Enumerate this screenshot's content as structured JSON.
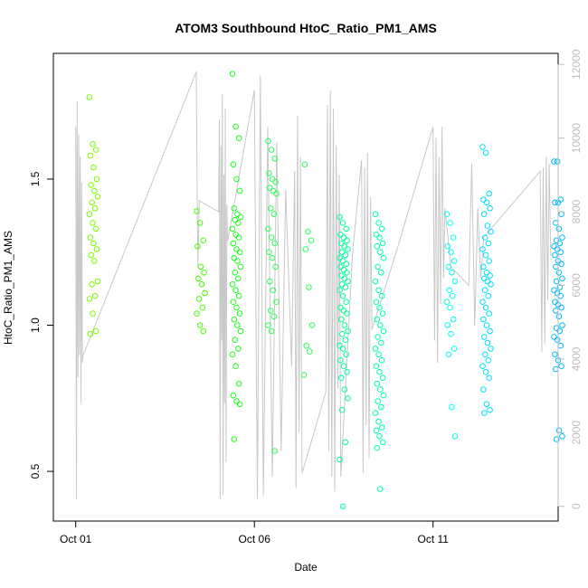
{
  "chart_data": {
    "type": "scatter",
    "title": "ATOM3 Southbound HtoC_Ratio_PM1_AMS",
    "xlabel": "Date",
    "ylabel": "HtoC_Ratio_PM1_AMS",
    "x_ticks": [
      "Oct 01",
      "Oct 06",
      "Oct 11"
    ],
    "y_ticks": [
      0.5,
      1.0,
      1.5
    ],
    "y_tick_labels": [
      "0.5",
      "1.0",
      "1.5"
    ],
    "y2_ticks": [
      0,
      2000,
      4000,
      6000,
      8000,
      10000,
      12000
    ],
    "y2_tick_labels": [
      "0",
      "2000",
      "4000",
      "6000",
      "8000",
      "10000",
      "12000"
    ],
    "xlim": [
      "2016-09-30T09:00",
      "2016-10-14T12:00"
    ],
    "ylim": [
      0.33,
      1.93
    ],
    "y2lim": [
      -400,
      12300
    ],
    "secondary_axis_color": "#bdbdbd",
    "grid": false,
    "series": [
      {
        "color": "#7cfc00",
        "x": [
          "2016-10-01",
          "2016-10-01",
          "2016-10-01",
          "2016-10-01",
          "2016-10-01",
          "2016-10-01",
          "2016-10-01",
          "2016-10-01",
          "2016-10-01",
          "2016-10-01",
          "2016-10-01",
          "2016-10-01",
          "2016-10-01",
          "2016-10-01",
          "2016-10-01",
          "2016-10-01",
          "2016-10-01",
          "2016-10-01",
          "2016-10-01",
          "2016-10-01",
          "2016-10-01",
          "2016-10-01",
          "2016-10-01",
          "2016-10-01",
          "2016-10-01",
          "2016-10-01"
        ],
        "y": [
          1.78,
          1.62,
          1.6,
          1.58,
          1.54,
          1.5,
          1.48,
          1.46,
          1.44,
          1.42,
          1.4,
          1.38,
          1.35,
          1.33,
          1.3,
          1.28,
          1.26,
          1.24,
          1.22,
          1.15,
          1.14,
          1.1,
          1.09,
          1.04,
          0.98,
          0.97
        ]
      },
      {
        "color": "#44ff00",
        "x": [
          "2016-10-04",
          "2016-10-04",
          "2016-10-04",
          "2016-10-04",
          "2016-10-04",
          "2016-10-04",
          "2016-10-04",
          "2016-10-04",
          "2016-10-04",
          "2016-10-04",
          "2016-10-04",
          "2016-10-04",
          "2016-10-04",
          "2016-10-04"
        ],
        "y": [
          1.39,
          1.35,
          1.29,
          1.27,
          1.2,
          1.18,
          1.16,
          1.14,
          1.11,
          1.09,
          1.06,
          1.04,
          1.0,
          0.98
        ]
      },
      {
        "color": "#1aff1a",
        "x": [
          "2016-10-05",
          "2016-10-05",
          "2016-10-05",
          "2016-10-05",
          "2016-10-05",
          "2016-10-05",
          "2016-10-05",
          "2016-10-05",
          "2016-10-05",
          "2016-10-05",
          "2016-10-05",
          "2016-10-05",
          "2016-10-05",
          "2016-10-05",
          "2016-10-05",
          "2016-10-05",
          "2016-10-05",
          "2016-10-05",
          "2016-10-05",
          "2016-10-05",
          "2016-10-05",
          "2016-10-05",
          "2016-10-05",
          "2016-10-05",
          "2016-10-05",
          "2016-10-05",
          "2016-10-05",
          "2016-10-05",
          "2016-10-05",
          "2016-10-05",
          "2016-10-05",
          "2016-10-05",
          "2016-10-05",
          "2016-10-05",
          "2016-10-05",
          "2016-10-05",
          "2016-10-05",
          "2016-10-05",
          "2016-10-05",
          "2016-10-05"
        ],
        "y": [
          1.86,
          1.68,
          1.64,
          1.55,
          1.5,
          1.46,
          1.4,
          1.38,
          1.37,
          1.36,
          1.35,
          1.33,
          1.31,
          1.3,
          1.28,
          1.26,
          1.25,
          1.23,
          1.22,
          1.2,
          1.18,
          1.16,
          1.14,
          1.12,
          1.1,
          1.08,
          1.06,
          1.04,
          1.02,
          1.0,
          0.98,
          0.95,
          0.92,
          0.9,
          0.86,
          0.8,
          0.76,
          0.74,
          0.73,
          0.61
        ]
      },
      {
        "color": "#2aff5a",
        "x": [
          "2016-10-06",
          "2016-10-06",
          "2016-10-06",
          "2016-10-06",
          "2016-10-06",
          "2016-10-06",
          "2016-10-06",
          "2016-10-06",
          "2016-10-06",
          "2016-10-06",
          "2016-10-06",
          "2016-10-06",
          "2016-10-06",
          "2016-10-06",
          "2016-10-06",
          "2016-10-06",
          "2016-10-06",
          "2016-10-06",
          "2016-10-06",
          "2016-10-06",
          "2016-10-06",
          "2016-10-06",
          "2016-10-06",
          "2016-10-06",
          "2016-10-06",
          "2016-10-07",
          "2016-10-07",
          "2016-10-07",
          "2016-10-07",
          "2016-10-07",
          "2016-10-07",
          "2016-10-07",
          "2016-10-07",
          "2016-10-07"
        ],
        "y": [
          1.63,
          1.6,
          1.57,
          1.52,
          1.5,
          1.49,
          1.47,
          1.46,
          1.45,
          1.4,
          1.38,
          1.33,
          1.3,
          1.28,
          1.25,
          1.23,
          1.2,
          1.15,
          1.12,
          1.08,
          1.05,
          1.03,
          1.0,
          0.98,
          0.57,
          1.55,
          1.32,
          1.29,
          1.26,
          1.13,
          1.0,
          0.93,
          0.91,
          0.83
        ]
      },
      {
        "color": "#00ff99",
        "x": [
          "2016-10-08",
          "2016-10-08",
          "2016-10-08",
          "2016-10-08",
          "2016-10-08",
          "2016-10-08",
          "2016-10-08",
          "2016-10-08",
          "2016-10-08",
          "2016-10-08",
          "2016-10-08",
          "2016-10-08",
          "2016-10-08",
          "2016-10-08",
          "2016-10-08",
          "2016-10-08",
          "2016-10-08",
          "2016-10-08",
          "2016-10-08",
          "2016-10-08",
          "2016-10-08",
          "2016-10-08",
          "2016-10-08",
          "2016-10-08",
          "2016-10-08",
          "2016-10-08",
          "2016-10-08",
          "2016-10-08",
          "2016-10-08",
          "2016-10-08",
          "2016-10-08",
          "2016-10-08",
          "2016-10-08",
          "2016-10-08",
          "2016-10-08",
          "2016-10-08",
          "2016-10-08",
          "2016-10-08",
          "2016-10-08",
          "2016-10-08",
          "2016-10-08",
          "2016-10-08",
          "2016-10-08",
          "2016-10-08",
          "2016-10-08",
          "2016-10-08"
        ],
        "y": [
          1.37,
          1.35,
          1.33,
          1.31,
          1.3,
          1.29,
          1.28,
          1.27,
          1.26,
          1.25,
          1.24,
          1.23,
          1.22,
          1.21,
          1.2,
          1.19,
          1.18,
          1.17,
          1.16,
          1.15,
          1.14,
          1.13,
          1.12,
          1.1,
          1.08,
          1.06,
          1.05,
          1.04,
          1.02,
          1.0,
          0.98,
          0.97,
          0.95,
          0.93,
          0.92,
          0.9,
          0.88,
          0.86,
          0.84,
          0.82,
          0.78,
          0.75,
          0.71,
          0.6,
          0.54,
          0.38
        ]
      },
      {
        "color": "#00ffaa",
        "x": [
          "2016-10-09",
          "2016-10-09",
          "2016-10-09",
          "2016-10-09",
          "2016-10-09",
          "2016-10-09",
          "2016-10-09",
          "2016-10-09",
          "2016-10-09",
          "2016-10-09",
          "2016-10-09",
          "2016-10-09",
          "2016-10-09",
          "2016-10-09",
          "2016-10-09",
          "2016-10-09",
          "2016-10-09",
          "2016-10-09",
          "2016-10-09",
          "2016-10-09",
          "2016-10-09",
          "2016-10-09",
          "2016-10-09",
          "2016-10-09",
          "2016-10-09",
          "2016-10-09",
          "2016-10-09",
          "2016-10-09",
          "2016-10-09",
          "2016-10-09",
          "2016-10-09",
          "2016-10-09",
          "2016-10-09",
          "2016-10-09",
          "2016-10-09",
          "2016-10-09",
          "2016-10-09",
          "2016-10-09",
          "2016-10-09",
          "2016-10-09",
          "2016-10-09"
        ],
        "y": [
          1.38,
          1.35,
          1.33,
          1.31,
          1.3,
          1.28,
          1.27,
          1.25,
          1.23,
          1.2,
          1.18,
          1.15,
          1.12,
          1.1,
          1.08,
          1.06,
          1.04,
          1.02,
          1.0,
          0.98,
          0.96,
          0.94,
          0.92,
          0.9,
          0.88,
          0.86,
          0.84,
          0.82,
          0.8,
          0.78,
          0.76,
          0.74,
          0.72,
          0.7,
          0.67,
          0.65,
          0.64,
          0.62,
          0.6,
          0.58,
          0.44
        ]
      },
      {
        "color": "#00ffee",
        "x": [
          "2016-10-11",
          "2016-10-11",
          "2016-10-11",
          "2016-10-11",
          "2016-10-11",
          "2016-10-11",
          "2016-10-11",
          "2016-10-11",
          "2016-10-11",
          "2016-10-11",
          "2016-10-11",
          "2016-10-11",
          "2016-10-11",
          "2016-10-11",
          "2016-10-11",
          "2016-10-11",
          "2016-10-11",
          "2016-10-11",
          "2016-10-11",
          "2016-10-11"
        ],
        "y": [
          1.38,
          1.35,
          1.3,
          1.27,
          1.25,
          1.22,
          1.2,
          1.18,
          1.15,
          1.12,
          1.1,
          1.08,
          1.06,
          1.02,
          1.0,
          0.97,
          0.92,
          0.9,
          0.72,
          0.62
        ]
      },
      {
        "color": "#00ddff",
        "x": [
          "2016-10-12",
          "2016-10-12",
          "2016-10-12",
          "2016-10-12",
          "2016-10-12",
          "2016-10-12",
          "2016-10-12",
          "2016-10-12",
          "2016-10-12",
          "2016-10-12",
          "2016-10-12",
          "2016-10-12",
          "2016-10-12",
          "2016-10-12",
          "2016-10-12",
          "2016-10-12",
          "2016-10-12",
          "2016-10-12",
          "2016-10-12",
          "2016-10-12",
          "2016-10-12",
          "2016-10-12",
          "2016-10-12",
          "2016-10-12",
          "2016-10-12",
          "2016-10-12",
          "2016-10-12",
          "2016-10-12",
          "2016-10-12",
          "2016-10-12",
          "2016-10-12",
          "2016-10-12",
          "2016-10-12",
          "2016-10-12",
          "2016-10-12",
          "2016-10-12",
          "2016-10-12",
          "2016-10-12",
          "2016-10-12",
          "2016-10-12"
        ],
        "y": [
          1.61,
          1.59,
          1.45,
          1.43,
          1.42,
          1.4,
          1.38,
          1.34,
          1.32,
          1.3,
          1.28,
          1.26,
          1.24,
          1.22,
          1.2,
          1.18,
          1.17,
          1.16,
          1.15,
          1.14,
          1.12,
          1.1,
          1.08,
          1.06,
          1.04,
          1.02,
          1.0,
          0.98,
          0.96,
          0.94,
          0.92,
          0.9,
          0.88,
          0.86,
          0.84,
          0.82,
          0.78,
          0.73,
          0.71,
          0.7
        ]
      },
      {
        "color": "#00bbff",
        "x": [
          "2016-10-14",
          "2016-10-14",
          "2016-10-14",
          "2016-10-14",
          "2016-10-14",
          "2016-10-14",
          "2016-10-14",
          "2016-10-14",
          "2016-10-14",
          "2016-10-14",
          "2016-10-14",
          "2016-10-14",
          "2016-10-14",
          "2016-10-14",
          "2016-10-14",
          "2016-10-14",
          "2016-10-14",
          "2016-10-14",
          "2016-10-14",
          "2016-10-14",
          "2016-10-14",
          "2016-10-14",
          "2016-10-14",
          "2016-10-14",
          "2016-10-14",
          "2016-10-14",
          "2016-10-14",
          "2016-10-14",
          "2016-10-14",
          "2016-10-14",
          "2016-10-14",
          "2016-10-14",
          "2016-10-14",
          "2016-10-14",
          "2016-10-14",
          "2016-10-14",
          "2016-10-14",
          "2016-10-14",
          "2016-10-14",
          "2016-10-14",
          "2016-10-14",
          "2016-10-14",
          "2016-10-14"
        ],
        "y": [
          1.56,
          1.56,
          1.43,
          1.42,
          1.42,
          1.38,
          1.35,
          1.33,
          1.3,
          1.29,
          1.28,
          1.27,
          1.26,
          1.25,
          1.24,
          1.22,
          1.21,
          1.2,
          1.18,
          1.16,
          1.15,
          1.13,
          1.12,
          1.11,
          1.1,
          1.08,
          1.07,
          1.06,
          1.05,
          1.03,
          1.0,
          0.99,
          0.98,
          0.96,
          0.95,
          0.93,
          0.9,
          0.88,
          0.86,
          0.85,
          0.64,
          0.62,
          0.61
        ]
      }
    ],
    "secondary_series": {
      "color": "#c8c8c8",
      "x": [
        "2016-10-01T00:00",
        "2016-10-01T00:30",
        "2016-10-01T01:00",
        "2016-10-01T01:30",
        "2016-10-01T02:00",
        "2016-10-01T02:30",
        "2016-10-01T03:00",
        "2016-10-01T03:30",
        "2016-10-01T04:00",
        "2016-10-01T04:30",
        "2016-10-01T05:00",
        "2016-10-04T09:00",
        "2016-10-04T09:30",
        "2016-10-04T10:00",
        "2016-10-04T11:00",
        "2016-10-05T00:00",
        "2016-10-05T00:30",
        "2016-10-05T01:00",
        "2016-10-05T01:30",
        "2016-10-05T02:00",
        "2016-10-05T02:30",
        "2016-10-05T03:00",
        "2016-10-05T03:30",
        "2016-10-05T04:00",
        "2016-10-05T04:30",
        "2016-10-05T05:00",
        "2016-10-05T05:30",
        "2016-10-05T06:00",
        "2016-10-06T00:00",
        "2016-10-06T02:00",
        "2016-10-06T04:00",
        "2016-10-06T06:00",
        "2016-10-06T09:00",
        "2016-10-06T12:00",
        "2016-10-06T15:00",
        "2016-10-06T18:00",
        "2016-10-06T21:00",
        "2016-10-07T01:00",
        "2016-10-07T03:00",
        "2016-10-07T04:00",
        "2016-10-07T05:00",
        "2016-10-07T06:00",
        "2016-10-07T07:00",
        "2016-10-07T08:00",
        "2016-10-08T00:00",
        "2016-10-08T01:00",
        "2016-10-08T02:00",
        "2016-10-08T03:00",
        "2016-10-08T04:00",
        "2016-10-08T05:00",
        "2016-10-08T06:00",
        "2016-10-08T07:00",
        "2016-10-08T08:00",
        "2016-10-08T09:00",
        "2016-10-08T10:00",
        "2016-10-08T18:00",
        "2016-10-09T00:00",
        "2016-10-09T01:00",
        "2016-10-09T02:00",
        "2016-10-09T03:00",
        "2016-10-09T04:00",
        "2016-10-09T05:00",
        "2016-10-09T06:00",
        "2016-10-09T07:00",
        "2016-10-10T00:00",
        "2016-10-11T00:00",
        "2016-10-11T01:00",
        "2016-10-11T02:00",
        "2016-10-11T03:00",
        "2016-10-11T04:00",
        "2016-10-11T05:00",
        "2016-10-11T06:00",
        "2016-10-11T07:00",
        "2016-10-11T08:00",
        "2016-10-11T12:00",
        "2016-10-12T00:00",
        "2016-10-12T02:00",
        "2016-10-12T04:00",
        "2016-10-12T06:00",
        "2016-10-12T08:00",
        "2016-10-12T10:00",
        "2016-10-14T00:00",
        "2016-10-14T01:00",
        "2016-10-14T02:00",
        "2016-10-14T03:00",
        "2016-10-14T04:00",
        "2016-10-14T05:00",
        "2016-10-14T06:00",
        "2016-10-14T07:00"
      ],
      "y": [
        10300,
        200,
        11000,
        3500,
        10100,
        4100,
        9500,
        2800,
        8800,
        3900,
        4100,
        11800,
        9000,
        6500,
        8300,
        8000,
        10500,
        200,
        9800,
        4500,
        11200,
        300,
        9000,
        2800,
        10800,
        1200,
        8200,
        7200,
        11300,
        200,
        11700,
        300,
        10300,
        800,
        9900,
        1500,
        8600,
        3800,
        9100,
        500,
        10600,
        2000,
        9500,
        900,
        3100,
        10900,
        1500,
        11300,
        800,
        10800,
        400,
        9800,
        3200,
        9000,
        800,
        6900,
        9400,
        900,
        9200,
        2200,
        9600,
        1300,
        8400,
        4800,
        7000,
        10300,
        4500,
        10000,
        3900,
        9500,
        5500,
        10300,
        6200,
        8100,
        6500,
        6000,
        9300,
        4900,
        8100,
        6200,
        7300,
        9100,
        4200,
        9200,
        4400,
        9500,
        5600,
        9300,
        6800
      ]
    }
  }
}
